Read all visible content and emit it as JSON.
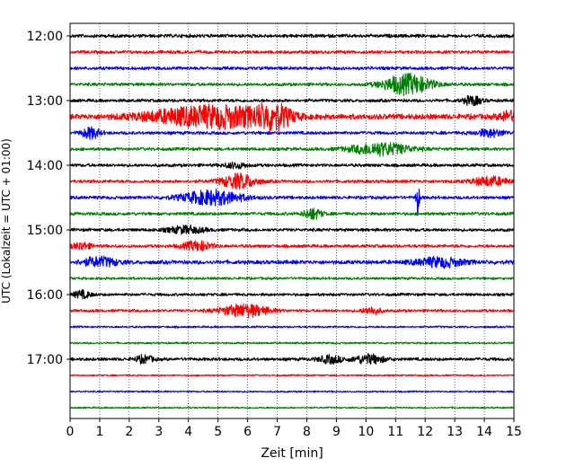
{
  "chart_data": {
    "type": "line",
    "title": "",
    "xlabel": "Zeit  [min]",
    "ylabel": "UTC (Lokalzeit = UTC + 01:00)",
    "xlim": [
      0,
      15
    ],
    "x_ticks": [
      "0",
      "1",
      "2",
      "3",
      "4",
      "5",
      "6",
      "7",
      "8",
      "9",
      "10",
      "11",
      "12",
      "13",
      "14",
      "15"
    ],
    "y_tick_labels": [
      "12:00",
      "13:00",
      "14:00",
      "15:00",
      "16:00",
      "17:00"
    ],
    "grid": {
      "vertical": true,
      "style": "dotted"
    },
    "trace_interval_minutes": 15,
    "trace_colors": [
      "#000000",
      "#ff0000",
      "#0000ff",
      "#008000"
    ],
    "series": [
      {
        "start": "12:00",
        "color": "#000000",
        "noise": 2.2,
        "events": []
      },
      {
        "start": "12:15",
        "color": "#ff0000",
        "noise": 2.0,
        "events": []
      },
      {
        "start": "12:30",
        "color": "#0000ff",
        "noise": 2.0,
        "events": []
      },
      {
        "start": "12:45",
        "color": "#008000",
        "noise": 2.0,
        "events": [
          {
            "t": 11.4,
            "amp": 11,
            "dur": 0.8
          }
        ]
      },
      {
        "start": "13:00",
        "color": "#000000",
        "noise": 2.0,
        "events": [
          {
            "t": 13.6,
            "amp": 5,
            "dur": 0.3
          }
        ]
      },
      {
        "start": "13:15",
        "color": "#ff0000",
        "noise": 3.5,
        "events": [
          {
            "t": 3.8,
            "amp": 7,
            "dur": 1.5
          },
          {
            "t": 5.5,
            "amp": 9,
            "dur": 1.4
          },
          {
            "t": 6.9,
            "amp": 12,
            "dur": 0.6
          },
          {
            "t": 14.8,
            "amp": 5,
            "dur": 0.3
          }
        ]
      },
      {
        "start": "13:30",
        "color": "#0000ff",
        "noise": 2.0,
        "events": [
          {
            "t": 0.7,
            "amp": 6,
            "dur": 0.3
          },
          {
            "t": 14.2,
            "amp": 4,
            "dur": 0.5
          }
        ]
      },
      {
        "start": "13:45",
        "color": "#008000",
        "noise": 2.0,
        "events": [
          {
            "t": 10.5,
            "amp": 7,
            "dur": 1.0
          }
        ]
      },
      {
        "start": "14:00",
        "color": "#000000",
        "noise": 2.0,
        "events": [
          {
            "t": 5.6,
            "amp": 3,
            "dur": 0.4
          }
        ]
      },
      {
        "start": "14:15",
        "color": "#ff0000",
        "noise": 2.0,
        "events": [
          {
            "t": 5.7,
            "amp": 8,
            "dur": 0.6
          },
          {
            "t": 14.2,
            "amp": 5,
            "dur": 0.6
          }
        ]
      },
      {
        "start": "14:30",
        "color": "#0000ff",
        "noise": 2.0,
        "events": [
          {
            "t": 4.8,
            "amp": 8,
            "dur": 1.0
          },
          {
            "t": 11.75,
            "amp": 18,
            "dur": 0.06
          }
        ]
      },
      {
        "start": "14:45",
        "color": "#008000",
        "noise": 2.0,
        "events": [
          {
            "t": 8.2,
            "amp": 6,
            "dur": 0.3
          }
        ]
      },
      {
        "start": "15:00",
        "color": "#000000",
        "noise": 2.0,
        "events": [
          {
            "t": 3.9,
            "amp": 4,
            "dur": 0.6
          }
        ]
      },
      {
        "start": "15:15",
        "color": "#ff0000",
        "noise": 2.0,
        "events": [
          {
            "t": 0.4,
            "amp": 4,
            "dur": 0.3
          },
          {
            "t": 4.3,
            "amp": 5,
            "dur": 0.5
          }
        ]
      },
      {
        "start": "15:30",
        "color": "#0000ff",
        "noise": 2.5,
        "events": [
          {
            "t": 1.0,
            "amp": 5,
            "dur": 0.6
          },
          {
            "t": 12.5,
            "amp": 5,
            "dur": 0.8
          }
        ]
      },
      {
        "start": "15:45",
        "color": "#008000",
        "noise": 1.6,
        "events": []
      },
      {
        "start": "16:00",
        "color": "#000000",
        "noise": 1.8,
        "events": [
          {
            "t": 0.4,
            "amp": 4,
            "dur": 0.3
          }
        ]
      },
      {
        "start": "16:15",
        "color": "#ff0000",
        "noise": 1.8,
        "events": [
          {
            "t": 5.9,
            "amp": 7,
            "dur": 0.8
          },
          {
            "t": 10.2,
            "amp": 4,
            "dur": 0.3
          }
        ]
      },
      {
        "start": "16:30",
        "color": "#0000ff",
        "noise": 1.2,
        "events": []
      },
      {
        "start": "16:45",
        "color": "#008000",
        "noise": 1.2,
        "events": []
      },
      {
        "start": "17:00",
        "color": "#000000",
        "noise": 2.0,
        "events": [
          {
            "t": 2.5,
            "amp": 4,
            "dur": 0.3
          },
          {
            "t": 8.8,
            "amp": 4,
            "dur": 0.4
          },
          {
            "t": 10.1,
            "amp": 5,
            "dur": 0.5
          }
        ]
      },
      {
        "start": "17:15",
        "color": "#ff0000",
        "noise": 1.0,
        "events": []
      },
      {
        "start": "17:30",
        "color": "#0000ff",
        "noise": 1.0,
        "events": []
      },
      {
        "start": "17:45",
        "color": "#008000",
        "noise": 1.0,
        "events": []
      }
    ]
  }
}
